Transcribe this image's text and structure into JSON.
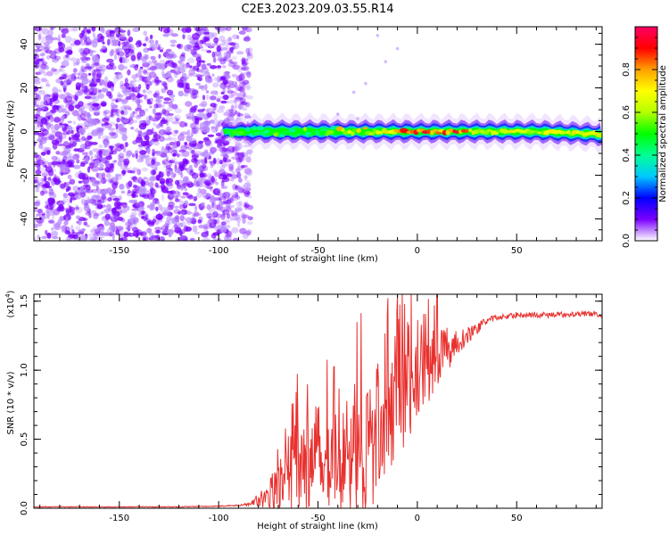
{
  "title": "C2E3.2023.209.03.55.R14",
  "chart_data": [
    {
      "type": "heatmap",
      "xlabel": "Height of straight line (km)",
      "ylabel": "Frequency (Hz)",
      "xlim": [
        -193,
        93
      ],
      "ylim": [
        -50,
        48
      ],
      "xticks": [
        -150,
        -100,
        -50,
        0,
        50
      ],
      "yticks": [
        -40,
        -20,
        0,
        20,
        40
      ],
      "colorbar": {
        "label": "Normalized spectral amplitude",
        "range": [
          0,
          1
        ],
        "ticks": [
          "0.0",
          "0.2",
          "0.4",
          "0.6",
          "0.8"
        ],
        "colors": [
          "#ffffff",
          "#7a00ff",
          "#0000ff",
          "#00c8ff",
          "#00ff96",
          "#00ff00",
          "#b4ff00",
          "#ffff00",
          "#ffa000",
          "#ff0000",
          "#ff0064"
        ]
      },
      "features": {
        "noise_region_x": [
          -193,
          -88
        ],
        "signal_line_y": 0,
        "peak_band_x": [
          -10,
          25
        ]
      }
    },
    {
      "type": "line",
      "xlabel": "Height of straight line (km)",
      "ylabel": "SNR (10 * v/v)",
      "y_multiplier": "(x10",
      "y_multiplier_exp": "4",
      "y_multiplier_close": ")",
      "xlim": [
        -193,
        93
      ],
      "ylim": [
        0,
        1.55
      ],
      "xticks": [
        -150,
        -100,
        -50,
        0,
        50
      ],
      "yticks": [
        "0.0",
        "0.5",
        "1.0",
        "1.5"
      ],
      "color": "#e8312f",
      "series": [
        {
          "x": [
            -193,
            -180,
            -160,
            -140,
            -120,
            -100,
            -90,
            -85,
            -80,
            -75,
            -70,
            -65,
            -60,
            -55,
            -50,
            -45,
            -40,
            -35,
            -30,
            -25,
            -20,
            -15,
            -10,
            -5,
            0,
            5,
            10,
            15,
            20,
            25,
            30,
            35,
            40,
            50,
            60,
            70,
            80,
            90,
            93
          ],
          "y": [
            0.01,
            0.01,
            0.01,
            0.01,
            0.01,
            0.015,
            0.02,
            0.03,
            0.06,
            0.1,
            0.15,
            0.22,
            0.3,
            0.3,
            0.32,
            0.4,
            0.3,
            0.38,
            0.45,
            0.42,
            0.55,
            0.7,
            0.75,
            0.85,
            0.92,
            1.0,
            1.1,
            1.15,
            1.2,
            1.25,
            1.3,
            1.36,
            1.38,
            1.4,
            1.4,
            1.4,
            1.41,
            1.41,
            1.37
          ],
          "amplitude": [
            0.003,
            0.003,
            0.003,
            0.003,
            0.003,
            0.004,
            0.005,
            0.01,
            0.05,
            0.1,
            0.18,
            0.3,
            0.38,
            0.35,
            0.32,
            0.38,
            0.35,
            0.42,
            0.5,
            0.55,
            0.5,
            0.42,
            0.4,
            0.36,
            0.32,
            0.28,
            0.22,
            0.16,
            0.1,
            0.06,
            0.04,
            0.025,
            0.02,
            0.02,
            0.02,
            0.02,
            0.02,
            0.02,
            0.02
          ]
        }
      ]
    }
  ]
}
